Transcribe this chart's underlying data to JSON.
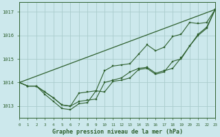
{
  "xlabel": "Graphe pression niveau de la mer (hPa)",
  "background_color": "#cce8ec",
  "grid_color": "#aacccc",
  "line_color": "#2d5f2d",
  "xlim": [
    0,
    23
  ],
  "ylim": [
    1012.5,
    1017.4
  ],
  "yticks": [
    1013,
    1014,
    1015,
    1016,
    1017
  ],
  "xticks": [
    0,
    1,
    2,
    3,
    4,
    5,
    6,
    7,
    8,
    9,
    10,
    11,
    12,
    13,
    14,
    15,
    16,
    17,
    18,
    19,
    20,
    21,
    22,
    23
  ],
  "series": [
    {
      "x": [
        0,
        1,
        2,
        3,
        4,
        5,
        6,
        7,
        8,
        9,
        10,
        11,
        12,
        13,
        14,
        15,
        16,
        17,
        18,
        19,
        20,
        21,
        22,
        23
      ],
      "y": [
        1014.0,
        1013.85,
        1013.85,
        1013.6,
        1013.35,
        1013.05,
        1013.0,
        1013.55,
        1013.6,
        1013.65,
        1014.5,
        1014.7,
        1014.75,
        1014.8,
        1015.2,
        1015.6,
        1015.35,
        1015.5,
        1015.95,
        1016.05,
        1016.55,
        1016.5,
        1016.55,
        1017.1
      ],
      "markers": true
    },
    {
      "x": [
        0,
        1,
        2,
        3,
        4,
        5,
        6,
        7,
        8,
        9,
        10,
        11,
        12,
        13,
        14,
        15,
        16,
        17,
        18,
        19,
        20,
        21,
        22,
        23
      ],
      "y": [
        1014.0,
        1013.85,
        1013.85,
        1013.6,
        1013.35,
        1013.05,
        1013.0,
        1013.2,
        1013.25,
        1013.3,
        1014.0,
        1014.1,
        1014.2,
        1014.45,
        1014.6,
        1014.65,
        1014.4,
        1014.5,
        1014.6,
        1015.05,
        1015.55,
        1016.05,
        1016.35,
        1017.1
      ],
      "markers": true
    },
    {
      "x": [
        0,
        1,
        2,
        3,
        4,
        5,
        6,
        7,
        8,
        9,
        10,
        11,
        12,
        13,
        14,
        15,
        16,
        17,
        18,
        19,
        20,
        21,
        22,
        23
      ],
      "y": [
        1014.0,
        1013.85,
        1013.85,
        1013.5,
        1013.2,
        1012.9,
        1012.85,
        1013.1,
        1013.15,
        1013.65,
        1013.6,
        1014.05,
        1014.1,
        1014.2,
        1014.55,
        1014.6,
        1014.35,
        1014.45,
        1014.9,
        1015.0,
        1015.55,
        1016.0,
        1016.3,
        1017.1
      ],
      "markers": true
    },
    {
      "x": [
        0,
        23
      ],
      "y": [
        1014.0,
        1017.1
      ],
      "markers": false
    }
  ]
}
